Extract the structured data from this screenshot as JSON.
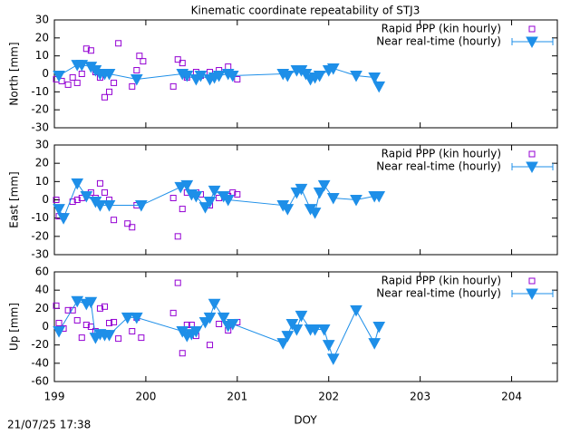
{
  "title": "Kinematic coordinate repeatability of STJ3",
  "footer": "21/07/25 17:38",
  "xaxis": {
    "label": "DOY",
    "xlim": [
      199,
      204.5
    ],
    "xticks": [
      199,
      200,
      201,
      202,
      203,
      204
    ]
  },
  "chart_data": [
    {
      "type": "scatter",
      "ylabel": "North [mm]",
      "ylim": [
        -30,
        30
      ],
      "yticks": [
        -30,
        -20,
        -10,
        0,
        10,
        20,
        30
      ],
      "legend": "top-right",
      "series": [
        {
          "name": "Rapid PPP (kin hourly)",
          "color": "#9400d3",
          "marker": "square",
          "line": false,
          "x": [
            199.02,
            199.08,
            199.15,
            199.2,
            199.25,
            199.3,
            199.35,
            199.4,
            199.45,
            199.5,
            199.55,
            199.6,
            199.65,
            199.7,
            199.85,
            199.9,
            199.93,
            199.97,
            200.3,
            200.35,
            200.4,
            200.45,
            200.55,
            200.6,
            200.7,
            200.8,
            200.9,
            201.0
          ],
          "values": [
            -3,
            -4,
            -6,
            -2,
            -5,
            0,
            14,
            13,
            1,
            -2,
            -13,
            -10,
            -5,
            17,
            -7,
            2,
            10,
            7,
            -7,
            8,
            6,
            -2,
            1,
            -1,
            1,
            2,
            4,
            -3
          ]
        },
        {
          "name": "Near real-time (hourly)",
          "color": "#1e8fe8",
          "marker": "triangle-down",
          "line": true,
          "x": [
            199.05,
            199.25,
            199.3,
            199.4,
            199.45,
            199.5,
            199.55,
            199.6,
            199.9,
            200.4,
            200.45,
            200.55,
            200.6,
            200.7,
            200.75,
            200.8,
            200.9,
            200.95,
            201.5,
            201.55,
            201.65,
            201.7,
            201.75,
            201.8,
            201.85,
            201.9,
            202.0,
            202.05,
            202.3,
            202.5,
            202.55
          ],
          "values": [
            -1,
            5,
            5,
            4,
            2,
            0,
            0,
            0,
            -3,
            0,
            -1,
            -3,
            -1,
            -3,
            -2,
            -1,
            0,
            -1,
            0,
            -1,
            2,
            2,
            0,
            -3,
            -2,
            -1,
            2,
            3,
            -1,
            -2,
            -7
          ]
        }
      ]
    },
    {
      "type": "scatter",
      "ylabel": "East [mm]",
      "ylim": [
        -30,
        30
      ],
      "yticks": [
        -30,
        -20,
        -10,
        0,
        10,
        20,
        30
      ],
      "legend": "top-right",
      "series": [
        {
          "name": "Rapid PPP (kin hourly)",
          "color": "#9400d3",
          "marker": "square",
          "line": false,
          "x": [
            199.02,
            199.05,
            199.1,
            199.2,
            199.25,
            199.3,
            199.35,
            199.4,
            199.45,
            199.5,
            199.55,
            199.6,
            199.65,
            199.8,
            199.85,
            199.9,
            200.3,
            200.35,
            200.4,
            200.45,
            200.55,
            200.6,
            200.7,
            200.8,
            200.9,
            200.95,
            201.0
          ],
          "values": [
            0,
            -9,
            -9,
            -1,
            0,
            1,
            3,
            4,
            1,
            9,
            4,
            0,
            -11,
            -13,
            -15,
            -3,
            1,
            -20,
            -5,
            4,
            4,
            3,
            -3,
            1,
            2,
            4,
            3
          ]
        },
        {
          "name": "Near real-time (hourly)",
          "color": "#1e8fe8",
          "marker": "triangle-down",
          "line": true,
          "x": [
            199.05,
            199.1,
            199.25,
            199.35,
            199.45,
            199.5,
            199.6,
            199.95,
            200.38,
            200.45,
            200.5,
            200.55,
            200.65,
            200.7,
            200.75,
            200.85,
            200.9,
            201.5,
            201.55,
            201.65,
            201.7,
            201.8,
            201.85,
            201.9,
            201.95,
            202.05,
            202.3,
            202.5,
            202.55
          ],
          "values": [
            -5,
            -10,
            9,
            2,
            -1,
            -3,
            -3,
            -3,
            7,
            8,
            3,
            2,
            -4,
            -1,
            5,
            2,
            0,
            -3,
            -5,
            4,
            6,
            -5,
            -7,
            4,
            8,
            1,
            0,
            2,
            2
          ]
        }
      ]
    },
    {
      "type": "scatter",
      "ylabel": "Up [mm]",
      "ylim": [
        -60,
        60
      ],
      "yticks": [
        -60,
        -40,
        -20,
        0,
        20,
        40,
        60
      ],
      "legend": "top-right",
      "series": [
        {
          "name": "Rapid PPP (kin hourly)",
          "color": "#9400d3",
          "marker": "square",
          "line": false,
          "x": [
            199.02,
            199.05,
            199.1,
            199.15,
            199.2,
            199.25,
            199.3,
            199.35,
            199.4,
            199.45,
            199.5,
            199.55,
            199.6,
            199.65,
            199.7,
            199.85,
            199.9,
            199.95,
            200.3,
            200.35,
            200.4,
            200.45,
            200.5,
            200.55,
            200.7,
            200.8,
            200.9,
            201.0
          ],
          "values": [
            23,
            4,
            -2,
            18,
            18,
            7,
            -12,
            2,
            0,
            -5,
            20,
            22,
            4,
            5,
            -13,
            -5,
            10,
            -12,
            15,
            48,
            -29,
            2,
            2,
            -10,
            -20,
            3,
            -4,
            5
          ]
        },
        {
          "name": "Near real-time (hourly)",
          "color": "#1e8fe8",
          "marker": "triangle-down",
          "line": true,
          "x": [
            199.05,
            199.25,
            199.35,
            199.4,
            199.45,
            199.5,
            199.55,
            199.6,
            199.8,
            199.9,
            200.4,
            200.45,
            200.5,
            200.55,
            200.65,
            200.7,
            200.75,
            200.85,
            200.9,
            200.95,
            201.5,
            201.55,
            201.6,
            201.65,
            201.7,
            201.8,
            201.85,
            201.95,
            202.0,
            202.05,
            202.3,
            202.5,
            202.55
          ],
          "values": [
            -5,
            28,
            25,
            27,
            -12,
            -8,
            -9,
            -9,
            10,
            10,
            -5,
            -10,
            -8,
            -5,
            5,
            10,
            25,
            10,
            1,
            3,
            -18,
            -10,
            3,
            -3,
            12,
            -3,
            -3,
            -3,
            -20,
            -35,
            18,
            -18,
            0
          ]
        }
      ]
    }
  ]
}
